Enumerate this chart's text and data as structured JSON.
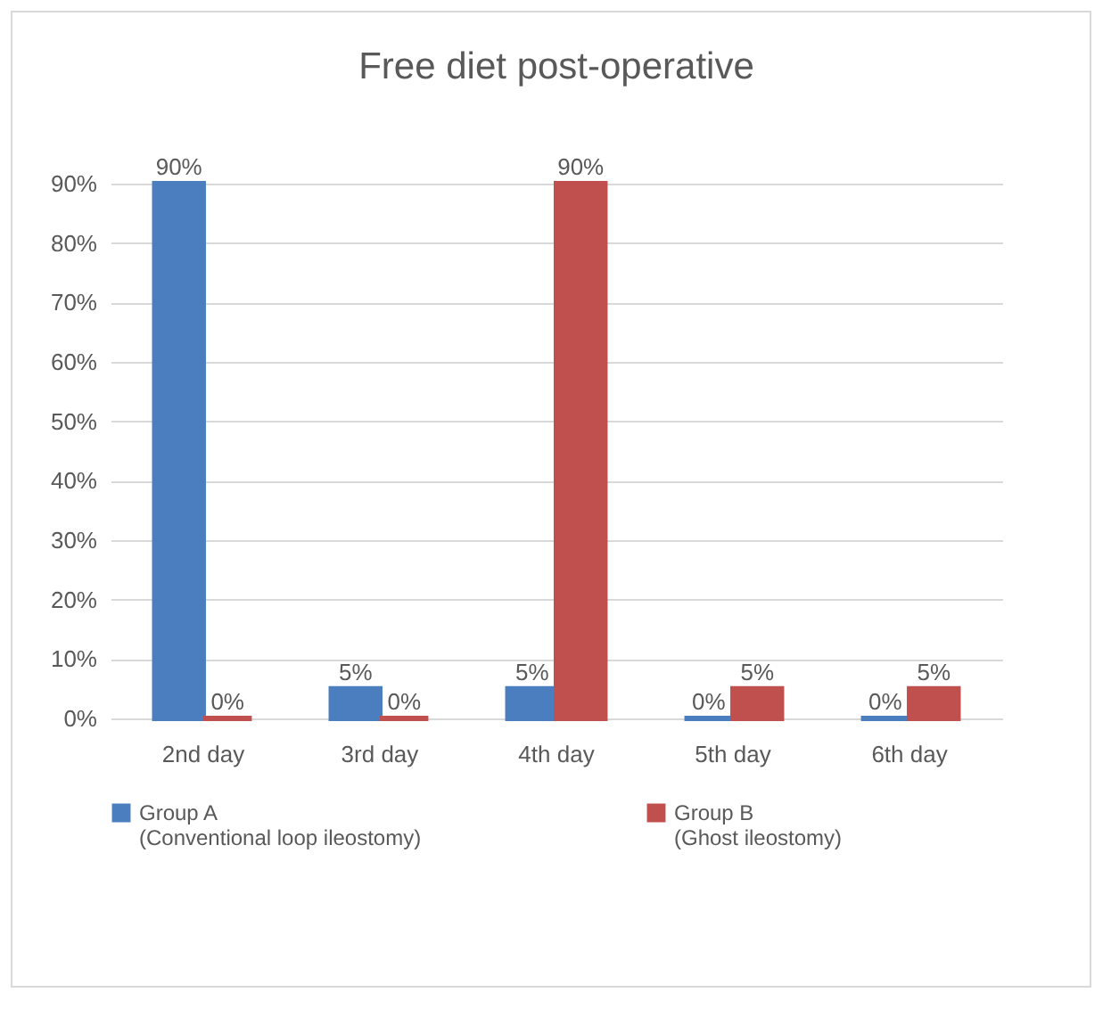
{
  "chart_data": {
    "type": "bar",
    "title": "Free diet post-operative",
    "categories": [
      "2nd day",
      "3rd day",
      "4th day",
      "5th day",
      "6th day"
    ],
    "series": [
      {
        "name": "Group A\n(Conventional loop  ileostomy)",
        "color": "#4a7ebf",
        "values": [
          90,
          5,
          5,
          0,
          0
        ],
        "value_labels": [
          "90%",
          "5%",
          "5%",
          "0%",
          "0%"
        ]
      },
      {
        "name": "Group B\n(Ghost ileostomy)",
        "color": "#c0504d",
        "values": [
          0,
          0,
          90,
          5,
          5
        ],
        "value_labels": [
          "0%",
          "0%",
          "90%",
          "5%",
          "5%"
        ]
      }
    ],
    "ylim": [
      0,
      90
    ],
    "yticks": [
      {
        "value": 0,
        "label": "0%"
      },
      {
        "value": 10,
        "label": "10%"
      },
      {
        "value": 20,
        "label": "20%"
      },
      {
        "value": 30,
        "label": "30%"
      },
      {
        "value": 40,
        "label": "40%"
      },
      {
        "value": 50,
        "label": "50%"
      },
      {
        "value": 60,
        "label": "60%"
      },
      {
        "value": 70,
        "label": "70%"
      },
      {
        "value": 80,
        "label": "80%"
      },
      {
        "value": 90,
        "label": "90%"
      }
    ],
    "grid": "y",
    "legend": "bottom"
  }
}
